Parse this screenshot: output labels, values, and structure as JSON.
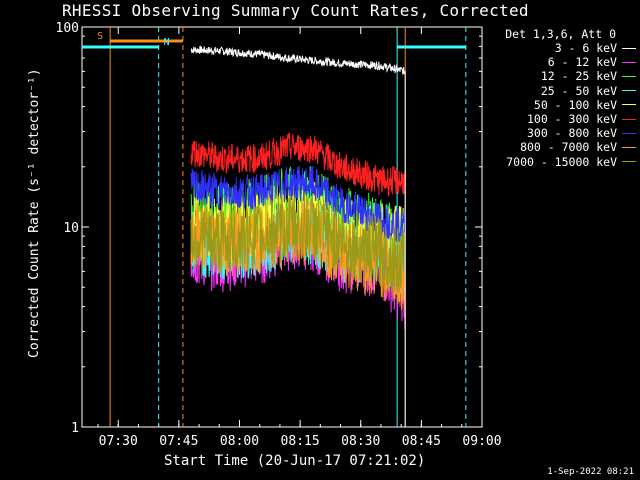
{
  "chart_data": {
    "type": "line",
    "title": "RHESSI Observing Summary Count Rates, Corrected",
    "xlabel": "Start Time (20-Jun-17 07:21:02)",
    "ylabel": "Corrected Count Rate (s⁻¹ detector⁻¹)",
    "yscale": "log",
    "ylim": [
      1,
      100
    ],
    "xlim": [
      "07:21:02",
      "09:00:00"
    ],
    "x_ticks": [
      "07:30",
      "07:45",
      "08:00",
      "08:15",
      "08:30",
      "08:45",
      "09:00"
    ],
    "y_ticks": [
      "1",
      "10",
      "100"
    ],
    "legend_title": "Det 1,3,6, Att 0",
    "legend_position": "right",
    "series": [
      {
        "name": "3 - 6 keV",
        "color": "#ffffff",
        "x": [
          "07:48",
          "07:55",
          "08:05",
          "08:12",
          "08:18",
          "08:25",
          "08:35",
          "08:41"
        ],
        "values": [
          77,
          76,
          73,
          70,
          68,
          66,
          64,
          60
        ]
      },
      {
        "name": "6 - 12 keV",
        "color": "#ff33ff",
        "x": [
          "07:48",
          "07:55",
          "08:05",
          "08:12",
          "08:18",
          "08:25",
          "08:35",
          "08:41"
        ],
        "values": [
          7.5,
          7,
          7.5,
          9,
          9,
          7,
          6.5,
          4.5
        ]
      },
      {
        "name": "12 - 25 keV",
        "color": "#33ff33",
        "x": [
          "07:48",
          "07:55",
          "08:05",
          "08:12",
          "08:18",
          "08:25",
          "08:35",
          "08:41"
        ],
        "values": [
          11.5,
          11,
          12,
          13.5,
          13.5,
          11,
          9.5,
          8
        ]
      },
      {
        "name": "25 - 50 keV",
        "color": "#33ffff",
        "x": [
          "07:48",
          "07:55",
          "08:05",
          "08:12",
          "08:18",
          "08:25",
          "08:35",
          "08:41"
        ],
        "values": [
          8.5,
          8,
          8.5,
          9.5,
          9.5,
          8,
          7.5,
          6.5
        ]
      },
      {
        "name": "50 - 100 keV",
        "color": "#ffff33",
        "x": [
          "07:48",
          "07:55",
          "08:05",
          "08:12",
          "08:18",
          "08:25",
          "08:35",
          "08:41"
        ],
        "values": [
          10,
          9.5,
          10.5,
          12,
          12,
          9.5,
          9,
          8.5
        ]
      },
      {
        "name": "100 - 300 keV",
        "color": "#ff2020",
        "x": [
          "07:48",
          "07:55",
          "08:05",
          "08:12",
          "08:18",
          "08:25",
          "08:35",
          "08:41"
        ],
        "values": [
          24,
          22,
          22,
          25,
          25,
          20,
          17,
          17
        ]
      },
      {
        "name": "300 - 800 keV",
        "color": "#3030ff",
        "x": [
          "07:48",
          "07:55",
          "08:05",
          "08:12",
          "08:18",
          "08:25",
          "08:35",
          "08:41"
        ],
        "values": [
          16,
          15,
          15,
          16.5,
          16.5,
          13,
          11,
          10
        ]
      },
      {
        "name": "800 - 7000 keV",
        "color": "#ff9a1a",
        "x": [
          "07:48",
          "07:55",
          "08:05",
          "08:12",
          "08:18",
          "08:25",
          "08:35",
          "08:41"
        ],
        "values": [
          9.5,
          8.5,
          8.5,
          9.5,
          9.5,
          7.5,
          6.5,
          5.5
        ]
      },
      {
        "name": "7000 - 15000 keV",
        "color": "#9a9a1a",
        "x": [
          "07:48",
          "07:55",
          "08:05",
          "08:12",
          "08:18",
          "08:25",
          "08:35",
          "08:41"
        ],
        "values": [
          9,
          8.5,
          9,
          10,
          10,
          8.5,
          7.5,
          6.5
        ]
      }
    ],
    "annotations": [
      {
        "label": "S",
        "color": "#ff8c1a",
        "from": "07:28",
        "to": "07:46"
      },
      {
        "label": "N",
        "color": "#33ffff",
        "from": "07:21",
        "to": "07:40"
      }
    ],
    "vertical_markers": [
      {
        "time": "07:28",
        "color": "#ff8c1a",
        "style": "solid"
      },
      {
        "time": "07:40",
        "color": "#33ffff",
        "style": "dashed"
      },
      {
        "time": "07:46",
        "color": "#ff8c1a",
        "style": "dashed"
      },
      {
        "time": "08:39",
        "color": "#33ffff",
        "style": "solid"
      },
      {
        "time": "08:41",
        "color": "#ff8c1a",
        "style": "solid"
      },
      {
        "time": "08:56",
        "color": "#33ffff",
        "style": "dashed"
      }
    ]
  },
  "footer": {
    "timestamp": "1-Sep-2022 08:21"
  }
}
